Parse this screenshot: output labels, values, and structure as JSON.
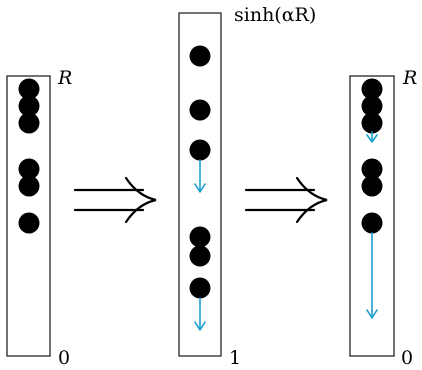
{
  "panels": [
    {
      "id": "left",
      "top_label": "R",
      "bottom_label": "0",
      "dots": 6,
      "arrows": 0
    },
    {
      "id": "middle",
      "top_label": "sinh(αR)",
      "bottom_label": "1",
      "dots": 6,
      "arrows": 2
    },
    {
      "id": "right",
      "top_label": "R",
      "bottom_label": "0",
      "dots": 6,
      "arrows": 2
    }
  ],
  "implies_symbols": 2,
  "colors": {
    "dot": "#000000",
    "box": "#000000",
    "arrow": "#1a9fd0"
  }
}
